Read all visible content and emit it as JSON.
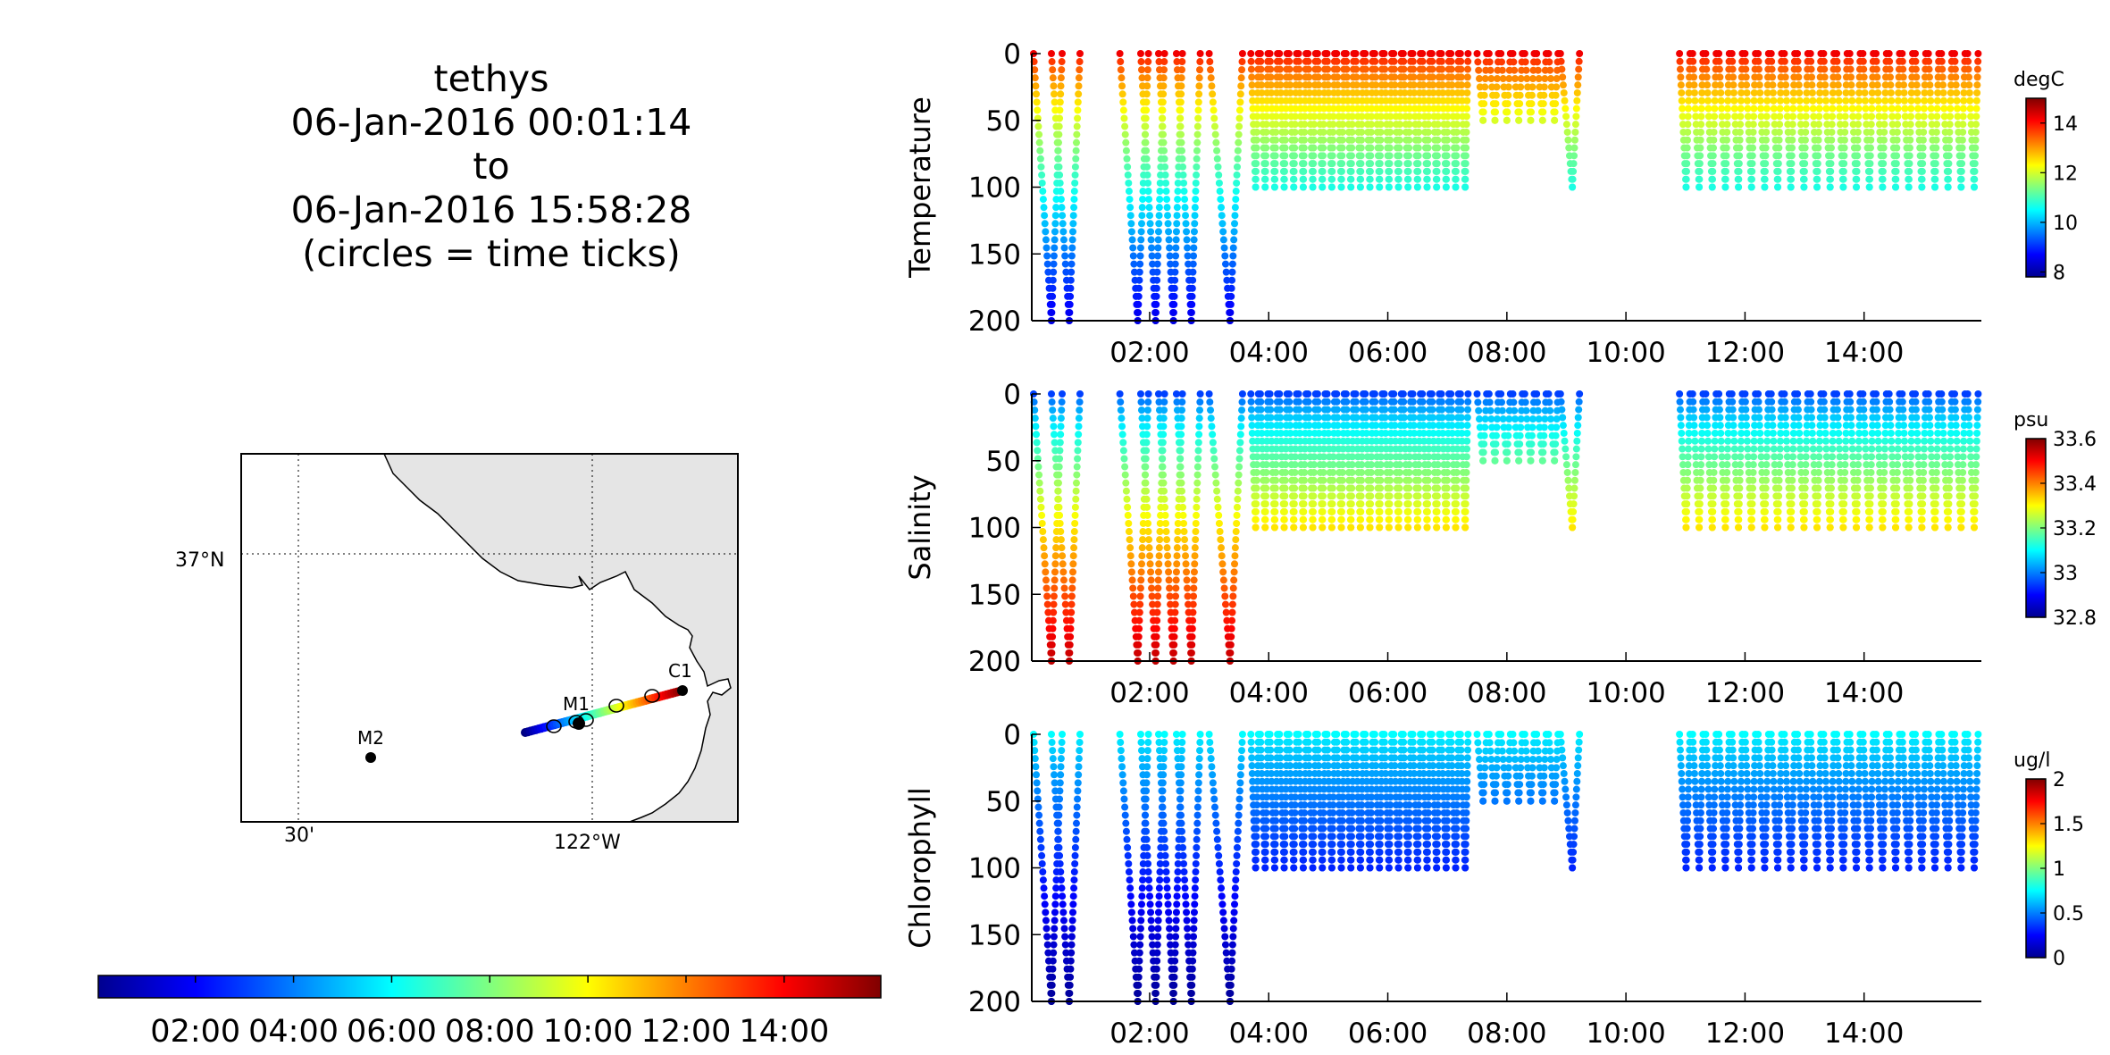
{
  "title": {
    "lines": [
      "tethys",
      "06-Jan-2016 00:01:14",
      "to",
      "06-Jan-2016 15:58:28",
      "(circles = time ticks)"
    ]
  },
  "map": {
    "lat_label": "37°N",
    "lon_labels": [
      "30'",
      "122°W"
    ],
    "stations": [
      {
        "name": "M2",
        "color": "#000000"
      },
      {
        "name": "M1",
        "color": "#000000"
      },
      {
        "name": "C1",
        "color": "#000000"
      }
    ],
    "land_color": "#e5e5e5"
  },
  "time_colorbar": {
    "tick_labels": [
      "02:00",
      "04:00",
      "06:00",
      "08:00",
      "10:00",
      "12:00",
      "14:00"
    ],
    "range_hours": [
      0.02,
      15.97
    ]
  },
  "chart_data": [
    {
      "type": "scatter",
      "ylabel": "Temperature",
      "unit": "degC",
      "x_range_hours": [
        0.02,
        15.97
      ],
      "ylim": [
        0,
        200
      ],
      "y_reversed": true,
      "yticks": [
        "0",
        "50",
        "100",
        "150",
        "200"
      ],
      "xticks": [
        "02:00",
        "04:00",
        "06:00",
        "08:00",
        "10:00",
        "12:00",
        "14:00"
      ],
      "colorbar_range": [
        7.8,
        15.0
      ],
      "colorbar_ticks": [
        "8",
        "10",
        "12",
        "14"
      ],
      "surface_value": 14.2,
      "deep_value": 8.5
    },
    {
      "type": "scatter",
      "ylabel": "Salinity",
      "unit": "psu",
      "x_range_hours": [
        0.02,
        15.97
      ],
      "ylim": [
        0,
        200
      ],
      "y_reversed": true,
      "yticks": [
        "0",
        "50",
        "100",
        "150",
        "200"
      ],
      "xticks": [
        "02:00",
        "04:00",
        "06:00",
        "08:00",
        "10:00",
        "12:00",
        "14:00"
      ],
      "colorbar_range": [
        32.8,
        33.6
      ],
      "colorbar_ticks": [
        "32.8",
        "33",
        "33.2",
        "33.4",
        "33.6"
      ],
      "surface_value": 32.95,
      "deep_value": 33.55
    },
    {
      "type": "scatter",
      "ylabel": "Chlorophyll",
      "unit": "ug/l",
      "x_range_hours": [
        0.02,
        15.97
      ],
      "ylim": [
        0,
        200
      ],
      "y_reversed": true,
      "yticks": [
        "0",
        "50",
        "100",
        "150",
        "200"
      ],
      "xticks": [
        "02:00",
        "04:00",
        "06:00",
        "08:00",
        "10:00",
        "12:00",
        "14:00"
      ],
      "colorbar_range": [
        0,
        2
      ],
      "colorbar_ticks": [
        "0",
        "0.5",
        "1",
        "1.5",
        "2"
      ],
      "surface_value": 0.75,
      "deep_value": 0.05
    }
  ]
}
